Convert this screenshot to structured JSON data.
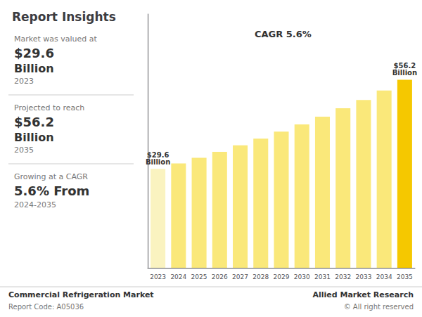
{
  "chart_data": {
    "type": "bar",
    "title": "Report Insights",
    "categories": [
      "2023",
      "2024",
      "2025",
      "2026",
      "2027",
      "2028",
      "2029",
      "2030",
      "2031",
      "2032",
      "2033",
      "2034",
      "2035"
    ],
    "values": [
      29.6,
      31.2,
      32.9,
      34.7,
      36.6,
      38.6,
      40.7,
      42.9,
      45.2,
      47.7,
      50.2,
      53.0,
      56.2
    ],
    "value_labels": [
      "$29.6\nBillion",
      null,
      null,
      null,
      null,
      null,
      null,
      null,
      null,
      null,
      null,
      null,
      "$56.2\nBillion"
    ],
    "colors": [
      "#FAF3C0",
      "#FAE87A",
      "#FAE87A",
      "#FAE87A",
      "#FAE87A",
      "#FAE87A",
      "#FAE87A",
      "#FAE87A",
      "#FAE87A",
      "#FAE87A",
      "#FAE87A",
      "#FAE87A",
      "#F5C800"
    ],
    "ylim": [
      0,
      75.87
    ],
    "yticks": [],
    "tick_labels": "x",
    "grid": false,
    "annotations": [
      "CAGR 5.6%",
      "Market was valued at",
      "$29.6",
      "Billion",
      "2023",
      "Projected to reach",
      "$56.2",
      "Billion",
      "2035",
      "Growing at a CAGR",
      "5.6% From",
      "2024-2035",
      "Commercial Refrigeration Market",
      "Report Code: A05036",
      "Allied Market Research",
      "© All right reserved"
    ]
  }
}
